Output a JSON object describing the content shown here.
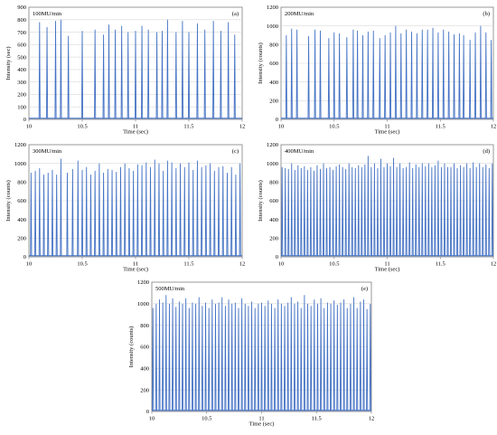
{
  "chart_data": [
    {
      "type": "line",
      "panel": "(a)",
      "title": "100MU/min",
      "xlabel": "Time (sec)",
      "ylabel": "Intensity (sec)",
      "xlim": [
        10,
        12
      ],
      "ylim": [
        0,
        900
      ],
      "xticks": [
        "10",
        "10.5",
        "11",
        "11.5",
        "12"
      ],
      "yticks": [
        "0",
        "100",
        "200",
        "300",
        "400",
        "500",
        "600",
        "700",
        "800",
        "900"
      ],
      "grid": true,
      "line_color": "#4472C4",
      "series": [
        {
          "x": [
            10.1,
            10.17,
            10.25,
            10.3,
            10.37,
            10.5,
            10.62,
            10.7,
            10.75,
            10.81,
            10.87,
            10.93,
            11.0,
            11.06,
            11.12,
            11.2,
            11.25,
            11.3,
            11.38,
            11.44,
            11.5,
            11.58,
            11.65,
            11.73,
            11.8,
            11.87,
            11.93
          ],
          "values": [
            780,
            740,
            790,
            800,
            670,
            710,
            720,
            680,
            760,
            720,
            750,
            700,
            710,
            750,
            720,
            700,
            710,
            800,
            700,
            790,
            700,
            770,
            720,
            790,
            710,
            780,
            680
          ]
        }
      ]
    },
    {
      "type": "line",
      "panel": "(b)",
      "title": "200MU/min",
      "xlabel": "Time (sec)",
      "ylabel": "Intensity (counts)",
      "xlim": [
        10,
        12
      ],
      "ylim": [
        0,
        1200
      ],
      "xticks": [
        "10",
        "10.5",
        "11",
        "11.5",
        "12"
      ],
      "yticks": [
        "0",
        "200",
        "400",
        "600",
        "800",
        "1000",
        "1200"
      ],
      "grid": true,
      "line_color": "#4472C4",
      "series": [
        {
          "x": [
            10.05,
            10.1,
            10.15,
            10.26,
            10.32,
            10.37,
            10.45,
            10.5,
            10.55,
            10.62,
            10.68,
            10.72,
            10.77,
            10.82,
            10.87,
            10.93,
            10.98,
            11.03,
            11.08,
            11.13,
            11.18,
            11.23,
            11.28,
            11.33,
            11.38,
            11.43,
            11.48,
            11.53,
            11.58,
            11.63,
            11.68,
            11.72,
            11.78,
            11.83,
            11.88,
            11.93,
            11.98
          ],
          "values": [
            900,
            970,
            960,
            890,
            960,
            950,
            870,
            930,
            920,
            880,
            960,
            950,
            900,
            940,
            950,
            870,
            900,
            930,
            1000,
            920,
            960,
            940,
            920,
            960,
            960,
            980,
            930,
            960,
            940,
            910,
            920,
            900,
            850,
            930,
            1000,
            930,
            850
          ]
        }
      ]
    },
    {
      "type": "line",
      "panel": "(c)",
      "title": "300MU/min",
      "xlabel": "Time (sec)",
      "ylabel": "Intensity (counts)",
      "xlim": [
        10,
        12
      ],
      "ylim": [
        0,
        1200
      ],
      "xticks": [
        "10",
        "10.5",
        "11",
        "11.5",
        "12"
      ],
      "yticks": [
        "0",
        "200",
        "400",
        "600",
        "800",
        "1000",
        "1200"
      ],
      "grid": true,
      "line_color": "#4472C4",
      "series": [
        {
          "x": [
            10.02,
            10.06,
            10.1,
            10.14,
            10.18,
            10.22,
            10.26,
            10.3,
            10.36,
            10.41,
            10.46,
            10.5,
            10.54,
            10.58,
            10.62,
            10.66,
            10.7,
            10.74,
            10.78,
            10.82,
            10.86,
            10.9,
            10.94,
            10.98,
            11.02,
            11.06,
            11.1,
            11.14,
            11.18,
            11.22,
            11.26,
            11.3,
            11.34,
            11.38,
            11.42,
            11.46,
            11.5,
            11.54,
            11.58,
            11.62,
            11.66,
            11.7,
            11.74,
            11.78,
            11.82,
            11.86,
            11.9,
            11.94,
            11.98
          ],
          "values": [
            900,
            920,
            950,
            880,
            900,
            930,
            880,
            1050,
            900,
            940,
            1030,
            930,
            960,
            880,
            920,
            1000,
            900,
            940,
            930,
            910,
            960,
            1000,
            950,
            920,
            990,
            980,
            1010,
            960,
            1040,
            1000,
            920,
            1030,
            1010,
            950,
            1000,
            960,
            1010,
            930,
            1030,
            960,
            980,
            1000,
            920,
            960,
            970,
            900,
            960,
            880,
            1000
          ]
        }
      ]
    },
    {
      "type": "line",
      "panel": "(d)",
      "title": "400MU/min",
      "xlabel": "Time (sec)",
      "ylabel": "Intensity (counts)",
      "xlim": [
        10,
        12
      ],
      "ylim": [
        0,
        1200
      ],
      "xticks": [
        "10",
        "10.5",
        "11",
        "11.5",
        "12"
      ],
      "yticks": [
        "0",
        "200",
        "400",
        "600",
        "800",
        "1000",
        "1200"
      ],
      "grid": true,
      "line_color": "#4472C4",
      "series": [
        {
          "x": [
            10.01,
            10.04,
            10.07,
            10.1,
            10.13,
            10.16,
            10.19,
            10.22,
            10.25,
            10.28,
            10.31,
            10.34,
            10.37,
            10.4,
            10.43,
            10.46,
            10.49,
            10.52,
            10.55,
            10.58,
            10.61,
            10.64,
            10.67,
            10.7,
            10.73,
            10.76,
            10.79,
            10.82,
            10.85,
            10.88,
            10.91,
            10.94,
            10.97,
            11.0,
            11.03,
            11.06,
            11.09,
            11.12,
            11.15,
            11.18,
            11.21,
            11.24,
            11.27,
            11.3,
            11.33,
            11.36,
            11.39,
            11.42,
            11.45,
            11.48,
            11.51,
            11.54,
            11.57,
            11.6,
            11.63,
            11.66,
            11.69,
            11.72,
            11.75,
            11.78,
            11.81,
            11.84,
            11.87,
            11.9,
            11.93,
            11.96,
            11.99
          ],
          "values": [
            960,
            950,
            940,
            1000,
            930,
            980,
            950,
            970,
            930,
            960,
            920,
            980,
            940,
            1000,
            950,
            960,
            930,
            970,
            990,
            960,
            940,
            1000,
            960,
            950,
            980,
            960,
            990,
            1080,
            960,
            1000,
            950,
            1050,
            960,
            1000,
            970,
            1060,
            960,
            1000,
            950,
            960,
            1010,
            950,
            990,
            960,
            1000,
            970,
            1000,
            960,
            980,
            1030,
            960,
            1000,
            960,
            960,
            1000,
            950,
            980,
            960,
            1000,
            950,
            1010,
            960,
            1000,
            960,
            990,
            950,
            1000
          ]
        }
      ]
    },
    {
      "type": "line",
      "panel": "(e)",
      "title": "500MU/min",
      "xlabel": "Time (sec)",
      "ylabel": "Intensity (counts)",
      "xlim": [
        10,
        12
      ],
      "ylim": [
        0,
        1200
      ],
      "xticks": [
        "10",
        "10.5",
        "11",
        "11.5",
        "12"
      ],
      "yticks": [
        "0",
        "200",
        "400",
        "600",
        "800",
        "1000",
        "1200"
      ],
      "grid": true,
      "line_color": "#4472C4",
      "series": [
        {
          "x": [
            10.01,
            10.04,
            10.07,
            10.1,
            10.13,
            10.16,
            10.19,
            10.22,
            10.25,
            10.28,
            10.31,
            10.34,
            10.37,
            10.4,
            10.43,
            10.46,
            10.49,
            10.52,
            10.55,
            10.58,
            10.61,
            10.64,
            10.67,
            10.7,
            10.73,
            10.76,
            10.79,
            10.82,
            10.85,
            10.88,
            10.91,
            10.94,
            10.97,
            11.0,
            11.03,
            11.06,
            11.09,
            11.12,
            11.15,
            11.18,
            11.21,
            11.24,
            11.27,
            11.3,
            11.33,
            11.36,
            11.39,
            11.42,
            11.45,
            11.48,
            11.51,
            11.54,
            11.57,
            11.6,
            11.63,
            11.66,
            11.69,
            11.72,
            11.75,
            11.78,
            11.81,
            11.84,
            11.87,
            11.9,
            11.93,
            11.96,
            11.99
          ],
          "values": [
            960,
            1000,
            1040,
            1010,
            1080,
            1000,
            1050,
            970,
            1020,
            1000,
            1050,
            960,
            1010,
            1000,
            1060,
            980,
            1010,
            960,
            1040,
            1000,
            1010,
            1060,
            980,
            1040,
            1000,
            1010,
            960,
            1050,
            1000,
            980,
            1020,
            960,
            1000,
            1010,
            980,
            1030,
            1000,
            960,
            1040,
            1000,
            980,
            1010,
            1060,
            1000,
            1020,
            960,
            1080,
            1000,
            980,
            1040,
            1000,
            1050,
            960,
            1010,
            1000,
            1030,
            990,
            1010,
            1040,
            960,
            1000,
            1060,
            960,
            1020,
            1040,
            950,
            1000
          ]
        }
      ]
    }
  ]
}
